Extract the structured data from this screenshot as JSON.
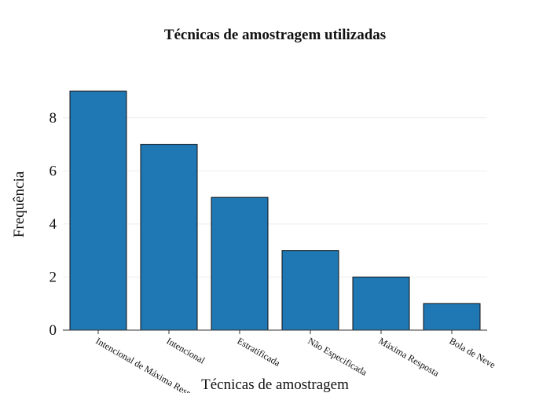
{
  "chart_data": {
    "type": "bar",
    "title": "Técnicas de amostragem utilizadas",
    "xlabel": "Técnicas de amostragem",
    "ylabel": "Frequência",
    "categories": [
      "Intencional de Máxima Resposta",
      "Intencional",
      "Estratificada",
      "Não Especificada",
      "Máxima Resposta",
      "Bola de Neve"
    ],
    "values": [
      9,
      7,
      5,
      3,
      2,
      1
    ],
    "ylim": [
      0,
      9
    ],
    "yticks": [
      0,
      2,
      4,
      6,
      8
    ],
    "grid": true,
    "bar_color": "#1f77b4",
    "bar_edge_color": "#111111",
    "grid_color": "#eeeeee",
    "axis_color": "#333333"
  }
}
